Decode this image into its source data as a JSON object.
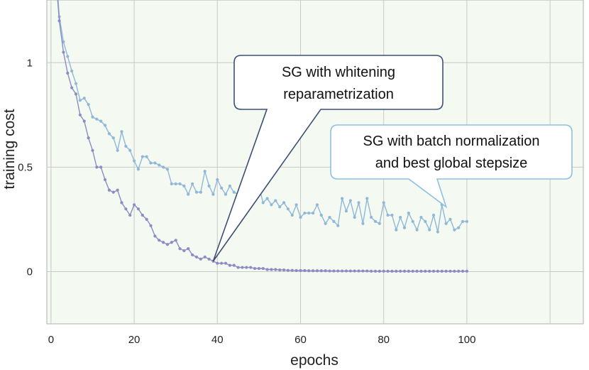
{
  "chart_data": {
    "type": "line",
    "title": "",
    "xlabel": "epochs",
    "ylabel": "training cost",
    "xlim": [
      -1,
      128
    ],
    "ylim": [
      -0.25,
      1.3
    ],
    "x_ticks": [
      "0",
      "20",
      "40",
      "60",
      "80",
      "100"
    ],
    "y_ticks": [
      "0",
      "0.5",
      "1"
    ],
    "grid": true,
    "series": [
      {
        "key": "bn",
        "color": "#8fb8d8",
        "x": [
          1,
          2,
          3,
          4,
          5,
          6,
          7,
          8,
          9,
          10,
          11,
          12,
          13,
          14,
          15,
          16,
          17,
          18,
          19,
          20,
          21,
          22,
          23,
          24,
          25,
          26,
          27,
          28,
          29,
          30,
          31,
          32,
          33,
          34,
          35,
          36,
          37,
          38,
          39,
          40,
          41,
          42,
          43,
          44,
          45,
          46,
          47,
          48,
          49,
          50,
          51,
          52,
          53,
          54,
          55,
          56,
          57,
          58,
          59,
          60,
          61,
          62,
          63,
          64,
          65,
          66,
          67,
          68,
          69,
          70,
          71,
          72,
          73,
          74,
          75,
          76,
          77,
          78,
          79,
          80,
          81,
          82,
          83,
          84,
          85,
          86,
          87,
          88,
          89,
          90,
          91,
          92,
          93,
          94,
          95,
          96,
          97,
          98,
          99,
          100
        ],
        "values": [
          1.5,
          1.22,
          1.1,
          1.03,
          0.96,
          0.9,
          0.82,
          0.83,
          0.8,
          0.74,
          0.73,
          0.72,
          0.7,
          0.66,
          0.64,
          0.58,
          0.67,
          0.6,
          0.58,
          0.53,
          0.49,
          0.55,
          0.55,
          0.52,
          0.52,
          0.51,
          0.5,
          0.49,
          0.42,
          0.42,
          0.42,
          0.41,
          0.37,
          0.42,
          0.38,
          0.38,
          0.48,
          0.41,
          0.37,
          0.44,
          0.4,
          0.37,
          0.41,
          0.38,
          0.37,
          0.39,
          0.42,
          0.32,
          0.34,
          0.41,
          0.33,
          0.35,
          0.32,
          0.34,
          0.31,
          0.33,
          0.3,
          0.27,
          0.32,
          0.26,
          0.28,
          0.28,
          0.28,
          0.32,
          0.27,
          0.23,
          0.26,
          0.24,
          0.22,
          0.35,
          0.29,
          0.34,
          0.26,
          0.33,
          0.23,
          0.35,
          0.26,
          0.24,
          0.23,
          0.33,
          0.27,
          0.27,
          0.2,
          0.26,
          0.21,
          0.28,
          0.24,
          0.2,
          0.26,
          0.24,
          0.2,
          0.27,
          0.19,
          0.32,
          0.23,
          0.25,
          0.2,
          0.21,
          0.24,
          0.24
        ]
      },
      {
        "key": "whitening",
        "color": "#8c8cc4",
        "x": [
          1,
          2,
          3,
          4,
          5,
          6,
          7,
          8,
          9,
          10,
          11,
          12,
          13,
          14,
          15,
          16,
          17,
          18,
          19,
          20,
          21,
          22,
          23,
          24,
          25,
          26,
          27,
          28,
          29,
          30,
          31,
          32,
          33,
          34,
          35,
          36,
          37,
          38,
          39,
          40,
          41,
          42,
          43,
          44,
          45,
          46,
          47,
          48,
          49,
          50,
          51,
          52,
          53,
          54,
          55,
          56,
          57,
          58,
          59,
          60,
          61,
          62,
          63,
          64,
          65,
          66,
          67,
          68,
          69,
          70,
          71,
          72,
          73,
          74,
          75,
          76,
          77,
          78,
          79,
          80,
          81,
          82,
          83,
          84,
          85,
          86,
          87,
          88,
          89,
          90,
          91,
          92,
          93,
          94,
          95,
          96,
          97,
          98,
          99,
          100
        ],
        "values": [
          1.45,
          1.2,
          1.05,
          0.95,
          0.88,
          0.85,
          0.75,
          0.72,
          0.64,
          0.58,
          0.5,
          0.5,
          0.44,
          0.39,
          0.38,
          0.39,
          0.33,
          0.3,
          0.27,
          0.32,
          0.3,
          0.27,
          0.25,
          0.22,
          0.17,
          0.15,
          0.14,
          0.13,
          0.14,
          0.15,
          0.11,
          0.1,
          0.11,
          0.08,
          0.07,
          0.06,
          0.07,
          0.06,
          0.05,
          0.04,
          0.04,
          0.04,
          0.03,
          0.03,
          0.02,
          0.02,
          0.02,
          0.02,
          0.015,
          0.015,
          0.015,
          0.01,
          0.01,
          0.01,
          0.008,
          0.008,
          0.006,
          0.006,
          0.005,
          0.005,
          0.005,
          0.004,
          0.004,
          0.004,
          0.004,
          0.004,
          0.003,
          0.003,
          0.003,
          0.003,
          0.003,
          0.003,
          0.003,
          0.003,
          0.003,
          0.003,
          0.002,
          0.002,
          0.002,
          0.002,
          0.002,
          0.002,
          0.002,
          0.002,
          0.002,
          0.002,
          0.002,
          0.002,
          0.002,
          0.002,
          0.002,
          0.002,
          0.002,
          0.002,
          0.002,
          0.002,
          0.002,
          0.002,
          0.002,
          0.002
        ]
      }
    ],
    "annotations": [
      {
        "lines": [
          "SG with whitening",
          "reparametrization"
        ],
        "points_to_x": 39,
        "points_to_y": 0.05
      },
      {
        "lines": [
          "SG with batch normalization",
          "and best global stepsize"
        ],
        "points_to_x": 95,
        "points_to_y": 0.31
      }
    ],
    "plot_background": "#f4f9f1",
    "callout_fill": "#ffffff",
    "callout_border_1": "#3d4f75",
    "callout_border_2": "#8ec0e2"
  }
}
